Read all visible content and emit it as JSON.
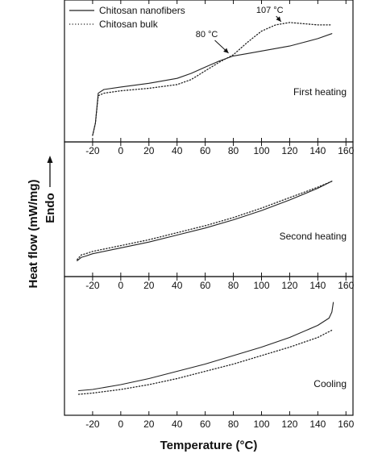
{
  "chart_data": {
    "type": "line",
    "xlabel": "Temperature (°C)",
    "ylabel": "Heat flow (mW/mg)",
    "ylabel_direction": "Endo",
    "xlim": [
      -40,
      165
    ],
    "xticks": [
      -20,
      0,
      20,
      40,
      60,
      80,
      100,
      120,
      140,
      160
    ],
    "grid": false,
    "legend_placement": "top-left",
    "legend": [
      {
        "name": "Chitosan nanofibers",
        "style": "solid"
      },
      {
        "name": "Chitosan bulk",
        "style": "dotted"
      }
    ],
    "panels": [
      {
        "label": "First heating",
        "ylim": [
          0,
          100
        ],
        "annotations": [
          {
            "text": "107 °C",
            "x": 107,
            "y": 91
          },
          {
            "text": "80 °C",
            "x": 80,
            "y": 65
          }
        ],
        "series": [
          {
            "name": "Chitosan nanofibers",
            "style": "solid",
            "x": [
              -20,
              -18,
              -16,
              -12,
              0,
              20,
              40,
              50,
              60,
              70,
              80,
              90,
              100,
              110,
              120,
              130,
              140,
              150
            ],
            "y": [
              0,
              10,
              34,
              37,
              39,
              42,
              46,
              50,
              55,
              60,
              64,
              66,
              68,
              70,
              72,
              75,
              78,
              82
            ]
          },
          {
            "name": "Chitosan bulk",
            "style": "dotted",
            "x": [
              -20,
              -18,
              -16,
              -12,
              0,
              20,
              40,
              50,
              60,
              70,
              80,
              90,
              100,
              110,
              120,
              130,
              140,
              150
            ],
            "y": [
              0,
              10,
              32,
              34,
              36,
              38,
              41,
              45,
              52,
              59,
              65,
              75,
              84,
              89,
              91,
              90,
              89,
              89
            ]
          }
        ]
      },
      {
        "label": "Second heating",
        "ylim": [
          0,
          100
        ],
        "series": [
          {
            "name": "Chitosan nanofibers",
            "style": "solid",
            "x": [
              -31,
              -28,
              -25,
              -20,
              0,
              20,
              40,
              60,
              80,
              100,
              120,
              140,
              150
            ],
            "y": [
              8,
              11,
              12,
              14,
              19,
              24,
              30,
              36,
              43,
              51,
              60,
              70,
              76
            ]
          },
          {
            "name": "Chitosan bulk",
            "style": "dotted",
            "x": [
              -31,
              -28,
              -25,
              -20,
              0,
              20,
              40,
              60,
              80,
              100,
              120,
              140,
              150
            ],
            "y": [
              9,
              13,
              14,
              16,
              21,
              26,
              32,
              38,
              45,
              53,
              62,
              71,
              76
            ]
          }
        ]
      },
      {
        "label": "Cooling",
        "ylim": [
          0,
          100
        ],
        "series": [
          {
            "name": "Chitosan nanofibers",
            "style": "solid",
            "x": [
              -30,
              -20,
              0,
              20,
              40,
              60,
              80,
              100,
              120,
              140,
              148,
              150,
              151
            ],
            "y": [
              15,
              16,
              20,
              25,
              31,
              37,
              44,
              51,
              59,
              69,
              75,
              80,
              88
            ]
          },
          {
            "name": "Chitosan bulk",
            "style": "dotted",
            "x": [
              -30,
              -20,
              0,
              20,
              40,
              60,
              80,
              100,
              120,
              140,
              150
            ],
            "y": [
              12,
              13,
              16,
              20,
              25,
              31,
              37,
              44,
              51,
              59,
              65
            ]
          }
        ]
      }
    ]
  }
}
